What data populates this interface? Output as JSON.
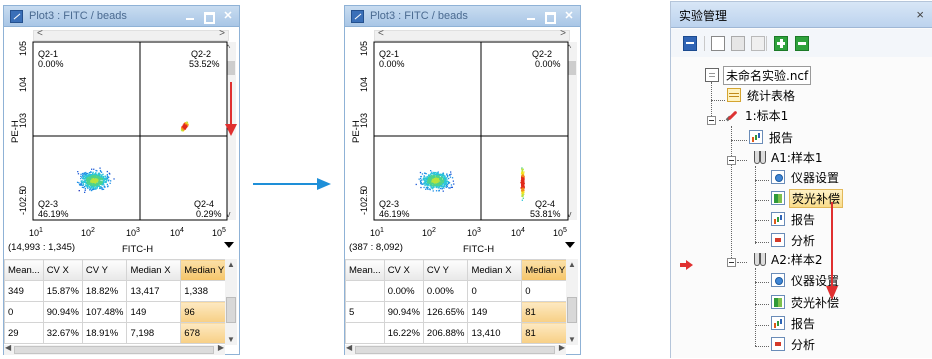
{
  "plots": [
    {
      "title": "Plot3 : FITC / beads",
      "q": {
        "q1": {
          "name": "Q2-1",
          "pct": "0.00%"
        },
        "q2": {
          "name": "Q2-2",
          "pct": "53.52%"
        },
        "q3": {
          "name": "Q2-3",
          "pct": "46.19%"
        },
        "q4": {
          "name": "Q2-4",
          "pct": "0.29%"
        }
      },
      "coord": "(14,993 : 1,345)",
      "xlabel": "FITC-H",
      "ylabel": "PE-H",
      "table": {
        "headers": [
          "Mean...",
          "CV X",
          "CV Y",
          "Median X",
          "Median Y"
        ],
        "rows": [
          [
            "349",
            "15.87%",
            "18.82%",
            "13,417",
            "1,338"
          ],
          [
            "0",
            "90.94%",
            "107.48%",
            "149",
            "96"
          ],
          [
            "29",
            "32.67%",
            "18.91%",
            "7,198",
            "678"
          ]
        ]
      }
    },
    {
      "title": "Plot3 : FITC / beads",
      "q": {
        "q1": {
          "name": "Q2-1",
          "pct": "0.00%"
        },
        "q2": {
          "name": "Q2-2",
          "pct": "0.00%"
        },
        "q3": {
          "name": "Q2-3",
          "pct": "46.19%"
        },
        "q4": {
          "name": "Q2-4",
          "pct": "53.81%"
        }
      },
      "coord": "(387 : 8,092)",
      "xlabel": "FITC-H",
      "ylabel": "PE-H",
      "table": {
        "headers": [
          "Mean...",
          "CV X",
          "CV Y",
          "Median X",
          "Median Y"
        ],
        "rows": [
          [
            "",
            "0.00%",
            "0.00%",
            "0",
            "0"
          ],
          [
            "5",
            "90.94%",
            "126.65%",
            "149",
            "81"
          ],
          [
            "",
            "16.22%",
            "206.88%",
            "13,410",
            "81"
          ]
        ]
      }
    }
  ],
  "axis_ticks": {
    "x": [
      "10",
      "10",
      "10",
      "10",
      "10"
    ],
    "x_exp": [
      "1",
      "2",
      "3",
      "4",
      "5"
    ],
    "y": [
      "10",
      "10",
      "10",
      "0",
      "-10"
    ],
    "y_exp": [
      "5",
      "4",
      "3",
      "",
      "2.5"
    ]
  },
  "panel": {
    "title": "实验管理",
    "tree": [
      {
        "label": "未命名实验.ncf"
      },
      {
        "label": "统计表格"
      },
      {
        "label": "1:标本1"
      },
      {
        "label": "报告"
      },
      {
        "label": "A1:样本1"
      },
      {
        "label": "仪器设置"
      },
      {
        "label": "荧光补偿"
      },
      {
        "label": "报告"
      },
      {
        "label": "分析"
      },
      {
        "label": "A2:样本2"
      },
      {
        "label": "仪器设置"
      },
      {
        "label": "荧光补偿"
      },
      {
        "label": "报告"
      },
      {
        "label": "分析"
      }
    ]
  },
  "colors": {
    "accent_blue": "#1e8fd8",
    "red_arrow": "#e03030",
    "highlight": "#f7cf85"
  }
}
